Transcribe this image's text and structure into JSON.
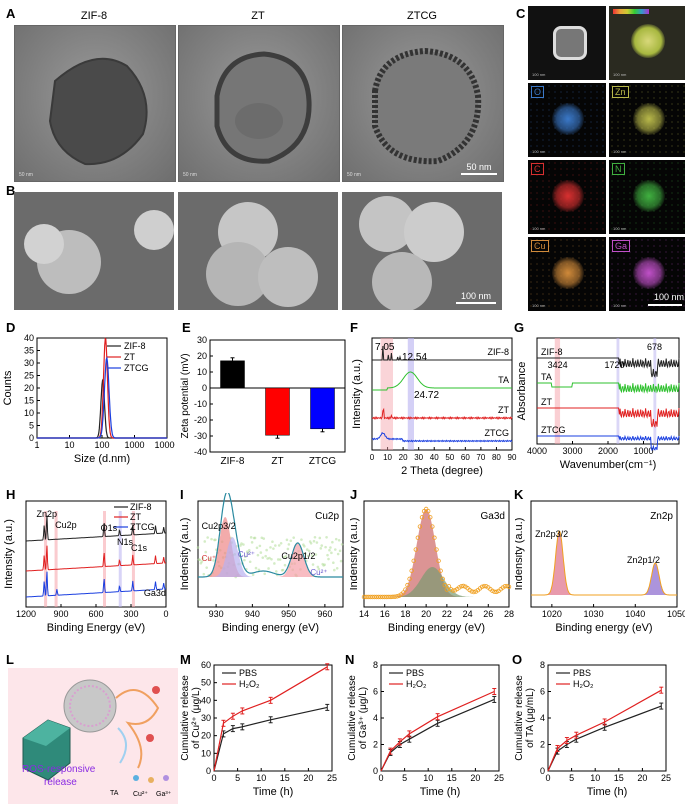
{
  "panels": {
    "A": "A",
    "B": "B",
    "C": "C",
    "D": "D",
    "E": "E",
    "F": "F",
    "G": "G",
    "H": "H",
    "I": "I",
    "J": "J",
    "K": "K",
    "L": "L",
    "M": "M",
    "N": "N",
    "O": "O"
  },
  "tem_titles": [
    "ZIF-8",
    "ZT",
    "ZTCG"
  ],
  "tem_small_scale": "50 nm",
  "tem_scale": "50 nm",
  "sem_scale": "100 nm",
  "eds": {
    "labels": [
      "O",
      "Zn",
      "C",
      "N",
      "Cu",
      "Ga"
    ],
    "label_colors": [
      "#3a78c8",
      "#b8b84a",
      "#d83030",
      "#40b040",
      "#d08a3a",
      "#c050c8"
    ],
    "scale": "100 nm",
    "small_scale": "100 nm"
  },
  "colors": {
    "black": "#222222",
    "red": "#e02020",
    "blue": "#1a3fe0",
    "green": "#2ec02e",
    "pink": "#f5a0a8",
    "lav": "#b8b0f0"
  },
  "chart_data": [
    {
      "panel": "D",
      "type": "line",
      "xlabel": "Size (d.nm)",
      "ylabel": "Counts",
      "xscale": "log",
      "xlim": [
        1,
        10000
      ],
      "ylim": [
        0,
        40
      ],
      "xticks": [
        "1",
        "10",
        "100",
        "1000",
        "10000"
      ],
      "yticks": [
        "0",
        "5",
        "10",
        "15",
        "20",
        "25",
        "30",
        "35",
        "40"
      ],
      "series": [
        {
          "name": "ZIF-8",
          "color": "#222222",
          "peak": 105,
          "height": 23,
          "sigma": 0.055
        },
        {
          "name": "ZT",
          "color": "#e02020",
          "peak": 128,
          "height": 40,
          "sigma": 0.06
        },
        {
          "name": "ZTCG",
          "color": "#1a3fe0",
          "peak": 140,
          "height": 32,
          "sigma": 0.07
        }
      ]
    },
    {
      "panel": "E",
      "type": "bar",
      "ylabel": "Zeta potential (mV)",
      "categories": [
        "ZIF-8",
        "ZT",
        "ZTCG"
      ],
      "values": [
        17,
        -29.5,
        -25.5
      ],
      "colors": [
        "#000000",
        "#ff0000",
        "#0000ff"
      ],
      "ylim": [
        -40,
        30
      ],
      "yticks": [
        "30",
        "20",
        "10",
        "0",
        "-10",
        "-20",
        "-30",
        "-40"
      ]
    },
    {
      "panel": "F",
      "type": "line",
      "xlabel": "2 Theta (degree)",
      "ylabel": "Intensity (a.u.)",
      "xlim": [
        0,
        90
      ],
      "xticks": [
        "0",
        "10",
        "20",
        "30",
        "40",
        "50",
        "60",
        "70",
        "80",
        "90"
      ],
      "series": [
        {
          "name": "ZIF-8",
          "color": "#222222"
        },
        {
          "name": "TA",
          "color": "#2ec02e"
        },
        {
          "name": "ZT",
          "color": "#e02020"
        },
        {
          "name": "ZTCG",
          "color": "#1a3fe0"
        }
      ],
      "annotations": [
        "7.05",
        "12.54",
        "24.72"
      ]
    },
    {
      "panel": "G",
      "type": "line",
      "xlabel": "Wavenumber(cm⁻¹)",
      "ylabel": "Absorbance",
      "xlim": [
        4000,
        0
      ],
      "xticks": [
        "4000",
        "3000",
        "2000",
        "1000"
      ],
      "series": [
        {
          "name": "ZIF-8",
          "color": "#222222"
        },
        {
          "name": "TA",
          "color": "#2ec02e"
        },
        {
          "name": "ZT",
          "color": "#e02020"
        },
        {
          "name": "ZTCG",
          "color": "#1a3fe0"
        }
      ],
      "annotations": [
        "3424",
        "1720",
        "678"
      ]
    },
    {
      "panel": "H",
      "type": "line",
      "xlabel": "Binding Energy (eV)",
      "ylabel": "Intensity (a.u.)",
      "xlim": [
        1200,
        0
      ],
      "xticks": [
        "1200",
        "900",
        "600",
        "300",
        "0"
      ],
      "series": [
        {
          "name": "ZIF-8",
          "color": "#222222"
        },
        {
          "name": "ZT",
          "color": "#e02020"
        },
        {
          "name": "ZTCG",
          "color": "#1a3fe0"
        }
      ],
      "annotations": [
        "Zn2p",
        "Cu2p",
        "O1s",
        "N1s",
        "C1s",
        "Ga3d"
      ]
    },
    {
      "panel": "I",
      "type": "line",
      "xlabel": "Binding energy (eV)",
      "ylabel": "Indensity (a.u.)",
      "xlim": [
        925,
        965
      ],
      "xticks": [
        "930",
        "940",
        "950",
        "960"
      ],
      "title": "Cu2p",
      "annotations": [
        "Cu2p3/2",
        "Cu2p1/2",
        "Cu⁺",
        "Cu²⁺",
        "Cu²⁺"
      ]
    },
    {
      "panel": "J",
      "type": "line",
      "xlabel": "Binding energy (eV)",
      "ylabel": "Indensity (a.u.)",
      "xlim": [
        14,
        28
      ],
      "xticks": [
        "14",
        "16",
        "18",
        "20",
        "22",
        "24",
        "26",
        "28"
      ],
      "title": "Ga3d"
    },
    {
      "panel": "K",
      "type": "line",
      "xlabel": "Binding energy (eV)",
      "ylabel": "Indensity (a.u.)",
      "xlim": [
        1015,
        1050
      ],
      "xticks": [
        "1020",
        "1030",
        "1040",
        "1050"
      ],
      "title": "Zn2p",
      "annotations": [
        "Zn2p3/2",
        "Zn2p1/2"
      ]
    },
    {
      "panel": "M",
      "type": "line",
      "xlabel": "Time (h)",
      "ylabel": "Cumulative release of Cu²⁺ (μg/L)",
      "xlim": [
        0,
        25
      ],
      "ylim": [
        0,
        60
      ],
      "xticks": [
        "0",
        "5",
        "10",
        "15",
        "20",
        "25"
      ],
      "yticks": [
        "0",
        "10",
        "20",
        "30",
        "40",
        "50",
        "60"
      ],
      "x": [
        0,
        2,
        4,
        6,
        12,
        24
      ],
      "series": [
        {
          "name": "PBS",
          "color": "#222222",
          "values": [
            0,
            21,
            24,
            25,
            29,
            36
          ]
        },
        {
          "name": "H₂O₂",
          "color": "#e02020",
          "values": [
            0,
            27,
            31,
            34,
            40,
            59
          ]
        }
      ]
    },
    {
      "panel": "N",
      "type": "line",
      "xlabel": "Time (h)",
      "ylabel": "Cumulative release of Ga³⁺ (μg/L)",
      "xlim": [
        0,
        25
      ],
      "ylim": [
        0,
        8
      ],
      "xticks": [
        "0",
        "5",
        "10",
        "15",
        "20",
        "25"
      ],
      "yticks": [
        "0",
        "2",
        "4",
        "6",
        "8"
      ],
      "x": [
        0,
        2,
        4,
        6,
        12,
        24
      ],
      "series": [
        {
          "name": "PBS",
          "color": "#222222",
          "values": [
            0,
            1.4,
            2.0,
            2.4,
            3.6,
            5.4
          ]
        },
        {
          "name": "H₂O₂",
          "color": "#e02020",
          "values": [
            0,
            1.5,
            2.2,
            2.8,
            4.1,
            6.0
          ]
        }
      ]
    },
    {
      "panel": "O",
      "type": "line",
      "xlabel": "Time (h)",
      "ylabel": "Cumulative release of TA (μg/mL)",
      "xlim": [
        0,
        25
      ],
      "ylim": [
        0,
        8
      ],
      "xticks": [
        "0",
        "5",
        "10",
        "15",
        "20",
        "25"
      ],
      "yticks": [
        "0",
        "2",
        "4",
        "6",
        "8"
      ],
      "x": [
        0,
        2,
        4,
        6,
        12,
        24
      ],
      "series": [
        {
          "name": "PBS",
          "color": "#222222",
          "values": [
            0,
            1.5,
            2.0,
            2.4,
            3.3,
            4.9
          ]
        },
        {
          "name": "H₂O₂",
          "color": "#e02020",
          "values": [
            0,
            1.7,
            2.3,
            2.7,
            3.7,
            6.1
          ]
        }
      ]
    }
  ],
  "schematic": {
    "text1": "ROS-responsive",
    "text2": "release",
    "legend": [
      "TA",
      "Cu²⁺",
      "Ga³⁺"
    ]
  }
}
